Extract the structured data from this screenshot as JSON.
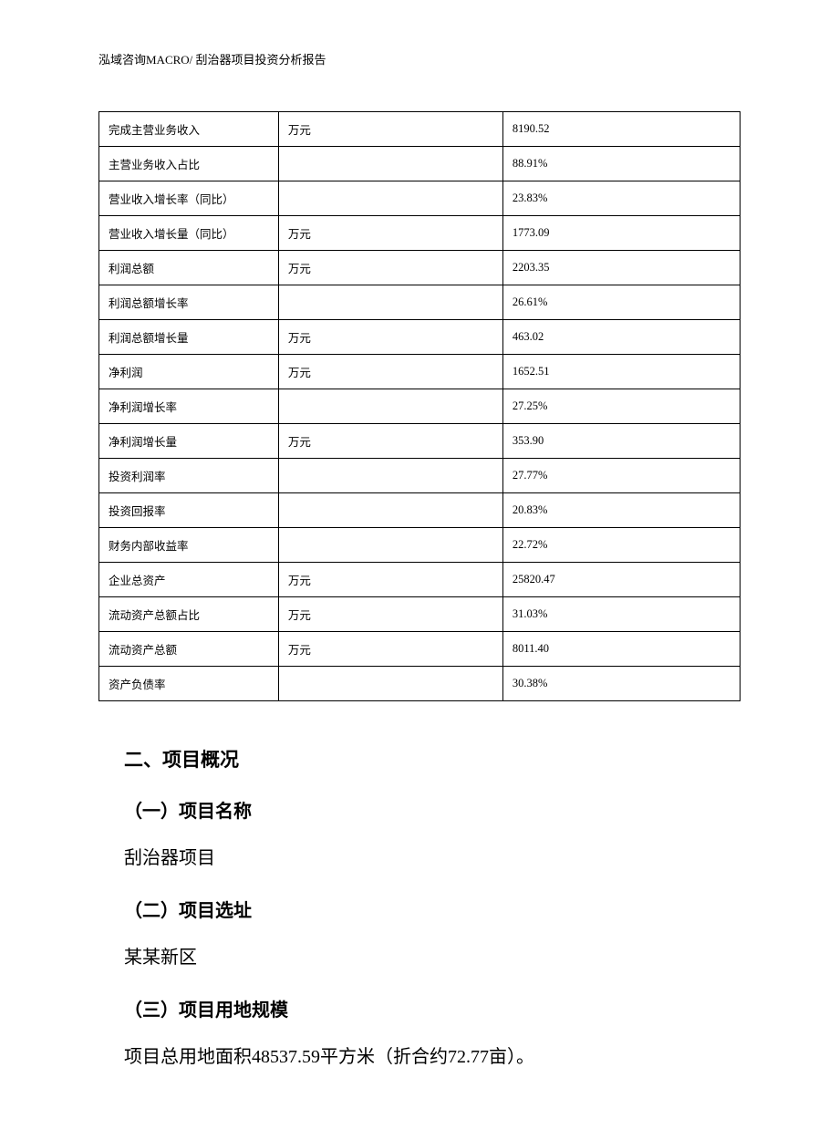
{
  "header": {
    "text": "泓域咨询MACRO/    刮治器项目投资分析报告"
  },
  "table": {
    "rows": [
      {
        "label": "完成主营业务收入",
        "unit": "万元",
        "value": "8190.52"
      },
      {
        "label": "主营业务收入占比",
        "unit": "",
        "value": "88.91%"
      },
      {
        "label": "营业收入增长率（同比）",
        "unit": "",
        "value": "23.83%"
      },
      {
        "label": "营业收入增长量（同比）",
        "unit": "万元",
        "value": "1773.09"
      },
      {
        "label": "利润总额",
        "unit": "万元",
        "value": "2203.35"
      },
      {
        "label": "利润总额增长率",
        "unit": "",
        "value": "26.61%"
      },
      {
        "label": "利润总额增长量",
        "unit": "万元",
        "value": "463.02"
      },
      {
        "label": "净利润",
        "unit": "万元",
        "value": "1652.51"
      },
      {
        "label": "净利润增长率",
        "unit": "",
        "value": "27.25%"
      },
      {
        "label": "净利润增长量",
        "unit": "万元",
        "value": "353.90"
      },
      {
        "label": "投资利润率",
        "unit": "",
        "value": "27.77%"
      },
      {
        "label": "投资回报率",
        "unit": "",
        "value": "20.83%"
      },
      {
        "label": "财务内部收益率",
        "unit": "",
        "value": "22.72%"
      },
      {
        "label": "企业总资产",
        "unit": "万元",
        "value": "25820.47"
      },
      {
        "label": "流动资产总额占比",
        "unit": "万元",
        "value": "31.03%"
      },
      {
        "label": "流动资产总额",
        "unit": "万元",
        "value": "8011.40"
      },
      {
        "label": "资产负债率",
        "unit": "",
        "value": "30.38%"
      }
    ]
  },
  "sections": {
    "main_heading": "二、项目概况",
    "sub1_heading": "（一）项目名称",
    "sub1_text": "刮治器项目",
    "sub2_heading": "（二）项目选址",
    "sub2_text": "某某新区",
    "sub3_heading": "（三）项目用地规模",
    "sub3_text": "项目总用地面积48537.59平方米（折合约72.77亩）。"
  },
  "styling": {
    "background_color": "#ffffff",
    "text_color": "#000000",
    "border_color": "#000000",
    "header_fontsize": 13,
    "table_fontsize": 12.5,
    "heading_main_fontsize": 21,
    "heading_sub_fontsize": 20,
    "body_fontsize": 20
  }
}
